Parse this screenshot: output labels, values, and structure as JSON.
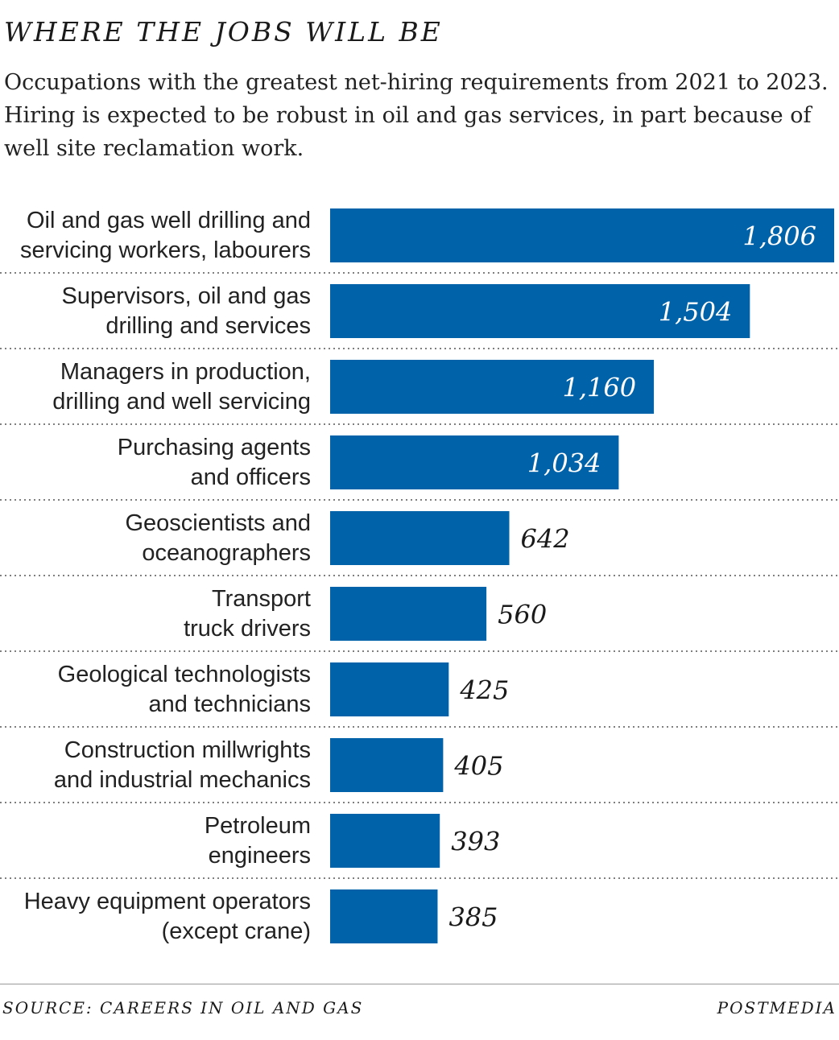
{
  "header": {
    "title": "WHERE THE JOBS WILL BE",
    "subtitle": "Occupations with the greatest net-hiring requirements from 2021 to 2023. Hiring is expected to be robust in oil and gas services, in part because of well site reclamation work."
  },
  "footer": {
    "source": "SOURCE: CAREERS IN OIL AND GAS",
    "credit": "POSTMEDIA"
  },
  "colors": {
    "bar": "#0062a8",
    "value_inside": "#ffffff",
    "value_outside": "#1a1a1a",
    "divider": "#555555"
  },
  "chart_data": {
    "type": "bar",
    "orientation": "horizontal",
    "title": "WHERE THE JOBS WILL BE",
    "xlabel": "",
    "ylabel": "",
    "xlim": [
      0,
      1806
    ],
    "grid": false,
    "legend": "none",
    "categories": [
      [
        "Oil and gas well drilling and",
        "servicing workers, labourers"
      ],
      [
        "Supervisors, oil and gas",
        "drilling and services"
      ],
      [
        "Managers in production,",
        "drilling and well servicing"
      ],
      [
        "Purchasing agents",
        "and officers"
      ],
      [
        "Geoscientists and",
        "oceanographers"
      ],
      [
        "Transport",
        "truck drivers"
      ],
      [
        "Geological technologists",
        "and technicians"
      ],
      [
        "Construction millwrights",
        "and industrial mechanics"
      ],
      [
        "Petroleum",
        "engineers"
      ],
      [
        "Heavy equipment operators",
        "(except crane)"
      ]
    ],
    "values": [
      1806,
      1504,
      1160,
      1034,
      642,
      560,
      425,
      405,
      393,
      385
    ],
    "value_labels": [
      "1,806",
      "1,504",
      "1,160",
      "1,034",
      "642",
      "560",
      "425",
      "405",
      "393",
      "385"
    ]
  }
}
